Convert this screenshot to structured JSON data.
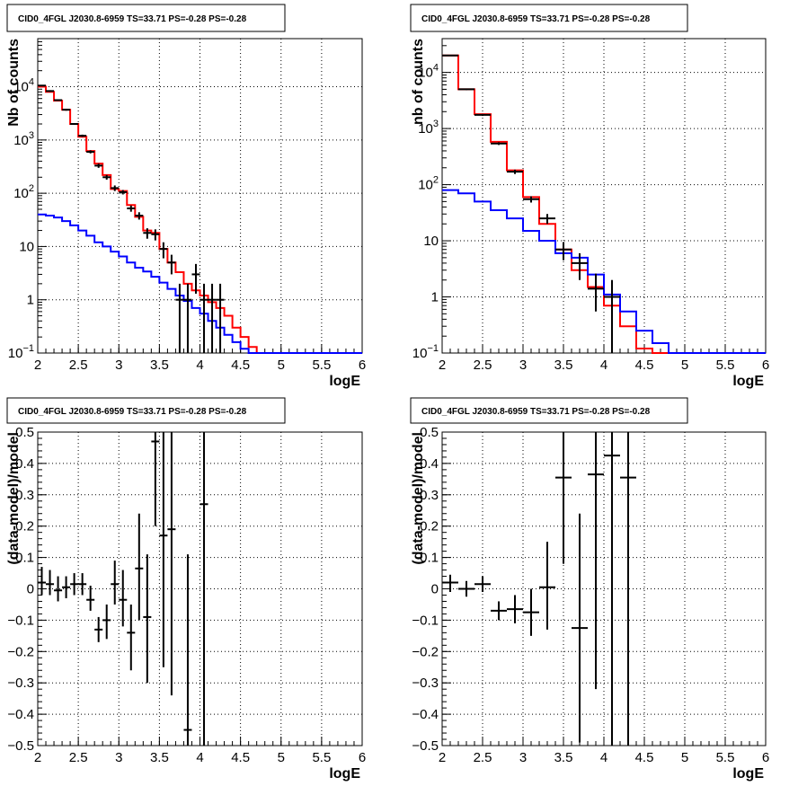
{
  "chart_data": [
    {
      "type": "line",
      "title": "CID0_4FGL J2030.8-6959 TS=33.71 PS=-0.28 PS=-0.28",
      "xlabel": "logE",
      "ylabel": "Nb of counts",
      "ylog": true,
      "xlim": [
        2,
        6
      ],
      "ylim": [
        0.1,
        80000
      ],
      "x_ticks": [
        "2",
        "2.5",
        "3",
        "3.5",
        "4",
        "4.5",
        "5",
        "5.5",
        "6"
      ],
      "y_ticks": [
        {
          "v": 0.1,
          "label": "10",
          "exp": "−1"
        },
        {
          "v": 1,
          "label": "1",
          "exp": ""
        },
        {
          "v": 10,
          "label": "10",
          "exp": ""
        },
        {
          "v": 100,
          "label": "10",
          "exp": "2"
        },
        {
          "v": 1000,
          "label": "10",
          "exp": "3"
        },
        {
          "v": 10000,
          "label": "10",
          "exp": "4"
        }
      ],
      "grid": true,
      "bin_width": 0.1,
      "series": [
        {
          "color": "#ff0000",
          "style": "step",
          "edges": [
            2,
            2.1,
            2.2,
            2.3,
            2.4,
            2.5,
            2.6,
            2.7,
            2.8,
            2.9,
            3,
            3.1,
            3.2,
            3.3,
            3.4,
            3.5,
            3.6,
            3.7,
            3.8,
            3.9,
            4,
            4.1,
            4.2,
            4.3,
            4.4,
            4.5,
            4.6,
            4.7,
            4.8,
            4.9,
            5,
            5.1,
            5.2,
            5.3,
            5.4,
            5.5,
            5.6,
            5.7,
            5.8,
            5.9,
            6
          ],
          "values": [
            10000,
            8000,
            5500,
            3700,
            2000,
            1150,
            620,
            360,
            220,
            120,
            110,
            60,
            36,
            20,
            18,
            9,
            5,
            3.3,
            2,
            1.5,
            1.2,
            0.9,
            0.7,
            0.5,
            0.3,
            0.2,
            0.13,
            0.1,
            0.1,
            0.1,
            0.1,
            0.1,
            0.1,
            0.1,
            0.1,
            0.1,
            0.1,
            0.1,
            0.1,
            0.1
          ]
        },
        {
          "color": "#0000ff",
          "style": "step",
          "edges": [
            2,
            2.1,
            2.2,
            2.3,
            2.4,
            2.5,
            2.6,
            2.7,
            2.8,
            2.9,
            3,
            3.1,
            3.2,
            3.3,
            3.4,
            3.5,
            3.6,
            3.7,
            3.8,
            3.9,
            4,
            4.1,
            4.2,
            4.3,
            4.4,
            4.5,
            4.6,
            4.7,
            4.8,
            4.9,
            5,
            5.1,
            5.2,
            5.3,
            5.4,
            5.5,
            5.6,
            5.7,
            5.8,
            5.9,
            6
          ],
          "values": [
            40,
            38,
            35,
            30,
            25,
            20,
            16,
            12,
            10,
            8,
            6.5,
            5,
            4,
            3.4,
            2.7,
            2.1,
            1.6,
            1.2,
            0.95,
            0.7,
            0.55,
            0.4,
            0.3,
            0.22,
            0.16,
            0.12,
            0.1,
            0.1,
            0.1,
            0.1,
            0.1,
            0.1,
            0.1,
            0.1,
            0.1,
            0.1,
            0.1,
            0.1,
            0.1,
            0.1
          ]
        }
      ],
      "points": [
        {
          "x": 2.05,
          "y": 10500,
          "ylo": 10200,
          "yhi": 10800
        },
        {
          "x": 2.15,
          "y": 8300,
          "ylo": 8000,
          "yhi": 8600
        },
        {
          "x": 2.25,
          "y": 5600,
          "ylo": 5400,
          "yhi": 5800
        },
        {
          "x": 2.35,
          "y": 3700,
          "ylo": 3550,
          "yhi": 3850
        },
        {
          "x": 2.45,
          "y": 2000,
          "ylo": 1920,
          "yhi": 2080
        },
        {
          "x": 2.55,
          "y": 1200,
          "ylo": 1140,
          "yhi": 1260
        },
        {
          "x": 2.65,
          "y": 600,
          "ylo": 560,
          "yhi": 640
        },
        {
          "x": 2.75,
          "y": 330,
          "ylo": 300,
          "yhi": 360
        },
        {
          "x": 2.85,
          "y": 200,
          "ylo": 180,
          "yhi": 220
        },
        {
          "x": 2.95,
          "y": 125,
          "ylo": 110,
          "yhi": 140
        },
        {
          "x": 3.05,
          "y": 105,
          "ylo": 95,
          "yhi": 115
        },
        {
          "x": 3.15,
          "y": 52,
          "ylo": 45,
          "yhi": 59
        },
        {
          "x": 3.25,
          "y": 38,
          "ylo": 32,
          "yhi": 44
        },
        {
          "x": 3.35,
          "y": 18,
          "ylo": 14,
          "yhi": 22
        },
        {
          "x": 3.45,
          "y": 17,
          "ylo": 13,
          "yhi": 21
        },
        {
          "x": 3.55,
          "y": 9,
          "ylo": 6,
          "yhi": 12
        },
        {
          "x": 3.65,
          "y": 5,
          "ylo": 3,
          "yhi": 7
        },
        {
          "x": 3.75,
          "y": 1,
          "ylo": 0.1,
          "yhi": 2
        },
        {
          "x": 3.85,
          "y": 1,
          "ylo": 0.1,
          "yhi": 2
        },
        {
          "x": 3.95,
          "y": 3,
          "ylo": 1.3,
          "yhi": 4.7
        },
        {
          "x": 4.05,
          "y": 1,
          "ylo": 0.1,
          "yhi": 2
        },
        {
          "x": 4.15,
          "y": 1,
          "ylo": 0.1,
          "yhi": 2
        },
        {
          "x": 4.25,
          "y": 1,
          "ylo": 0.1,
          "yhi": 2
        }
      ]
    },
    {
      "type": "line",
      "title": "CID0_4FGL J2030.8-6959 TS=33.71 PS=-0.28 PS=-0.28",
      "xlabel": "logE",
      "ylabel": "nb of counts",
      "ylog": true,
      "xlim": [
        2,
        6
      ],
      "ylim": [
        0.1,
        40000
      ],
      "x_ticks": [
        "2",
        "2.5",
        "3",
        "3.5",
        "4",
        "4.5",
        "5",
        "5.5",
        "6"
      ],
      "y_ticks": [
        {
          "v": 0.1,
          "label": "10",
          "exp": "−1"
        },
        {
          "v": 1,
          "label": "1",
          "exp": ""
        },
        {
          "v": 10,
          "label": "10",
          "exp": ""
        },
        {
          "v": 100,
          "label": "10",
          "exp": "2"
        },
        {
          "v": 1000,
          "label": "10",
          "exp": "3"
        },
        {
          "v": 10000,
          "label": "10",
          "exp": "4"
        }
      ],
      "grid": true,
      "bin_width": 0.2,
      "series": [
        {
          "color": "#ff0000",
          "style": "step",
          "edges": [
            2,
            2.2,
            2.4,
            2.6,
            2.8,
            3,
            3.2,
            3.4,
            3.6,
            3.8,
            4,
            4.2,
            4.4,
            4.6,
            4.8,
            5,
            5.2,
            5.4,
            5.6,
            5.8,
            6
          ],
          "values": [
            20000,
            5000,
            1800,
            580,
            180,
            60,
            20,
            7,
            3,
            1.5,
            0.7,
            0.3,
            0.12,
            0.1,
            0.1,
            0.1,
            0.1,
            0.1,
            0.1,
            0.1
          ]
        },
        {
          "color": "#0000ff",
          "style": "step",
          "edges": [
            2,
            2.2,
            2.4,
            2.6,
            2.8,
            3,
            3.2,
            3.4,
            3.6,
            3.8,
            4,
            4.2,
            4.4,
            4.6,
            4.8,
            5,
            5.2,
            5.4,
            5.6,
            5.8,
            6
          ],
          "values": [
            80,
            70,
            50,
            35,
            25,
            15,
            10,
            6,
            5,
            2.5,
            1.1,
            0.55,
            0.25,
            0.15,
            0.1,
            0.1,
            0.1,
            0.1,
            0.1,
            0.1
          ]
        }
      ],
      "points": [
        {
          "x": 2.1,
          "y": 20000,
          "ylo": 19700,
          "yhi": 20300
        },
        {
          "x": 2.3,
          "y": 5000,
          "ylo": 4850,
          "yhi": 5150
        },
        {
          "x": 2.5,
          "y": 1750,
          "ylo": 1680,
          "yhi": 1820
        },
        {
          "x": 2.7,
          "y": 540,
          "ylo": 510,
          "yhi": 570
        },
        {
          "x": 2.9,
          "y": 170,
          "ylo": 155,
          "yhi": 185
        },
        {
          "x": 3.1,
          "y": 55,
          "ylo": 48,
          "yhi": 62
        },
        {
          "x": 3.3,
          "y": 25,
          "ylo": 20,
          "yhi": 30
        },
        {
          "x": 3.5,
          "y": 7,
          "ylo": 4.5,
          "yhi": 9.5
        },
        {
          "x": 3.7,
          "y": 4,
          "ylo": 2,
          "yhi": 6
        },
        {
          "x": 3.9,
          "y": 1.4,
          "ylo": 0.55,
          "yhi": 2.6
        },
        {
          "x": 4.1,
          "y": 1,
          "ylo": 0.1,
          "yhi": 2
        }
      ]
    },
    {
      "type": "scatter",
      "title": "CID0_4FGL J2030.8-6959 TS=33.71 PS=-0.28 PS=-0.28",
      "xlabel": "logE",
      "ylabel": "(data-model)/model",
      "ylog": false,
      "xlim": [
        2,
        6
      ],
      "ylim": [
        -0.5,
        0.5
      ],
      "x_ticks": [
        "2",
        "2.5",
        "3",
        "3.5",
        "4",
        "4.5",
        "5",
        "5.5",
        "6"
      ],
      "y_ticks": [
        "−0.5",
        "−0.4",
        "−0.3",
        "−0.2",
        "−0.1",
        "0",
        "0.1",
        "0.2",
        "0.3",
        "0.4",
        "0.5"
      ],
      "grid": true,
      "bin_width": 0.1,
      "points": [
        {
          "x": 2.05,
          "y": 0.02,
          "ylo": -0.02,
          "yhi": 0.07
        },
        {
          "x": 2.15,
          "y": 0.015,
          "ylo": -0.02,
          "yhi": 0.06
        },
        {
          "x": 2.25,
          "y": -0.005,
          "ylo": -0.04,
          "yhi": 0.04
        },
        {
          "x": 2.35,
          "y": 0.005,
          "ylo": -0.03,
          "yhi": 0.04
        },
        {
          "x": 2.45,
          "y": 0.015,
          "ylo": -0.02,
          "yhi": 0.05
        },
        {
          "x": 2.55,
          "y": 0.015,
          "ylo": -0.02,
          "yhi": 0.05
        },
        {
          "x": 2.65,
          "y": -0.035,
          "ylo": -0.07,
          "yhi": 0.01
        },
        {
          "x": 2.75,
          "y": -0.13,
          "ylo": -0.17,
          "yhi": -0.09
        },
        {
          "x": 2.85,
          "y": -0.1,
          "ylo": -0.16,
          "yhi": -0.05
        },
        {
          "x": 2.95,
          "y": 0.015,
          "ylo": -0.05,
          "yhi": 0.09
        },
        {
          "x": 3.05,
          "y": -0.035,
          "ylo": -0.12,
          "yhi": 0.06
        },
        {
          "x": 3.15,
          "y": -0.14,
          "ylo": -0.26,
          "yhi": -0.05
        },
        {
          "x": 3.25,
          "y": 0.065,
          "ylo": -0.1,
          "yhi": 0.24
        },
        {
          "x": 3.35,
          "y": -0.09,
          "ylo": -0.3,
          "yhi": 0.11
        },
        {
          "x": 3.45,
          "y": 0.47,
          "ylo": 0.2,
          "yhi": 0.5
        },
        {
          "x": 3.55,
          "y": 0.17,
          "ylo": -0.25,
          "yhi": 0.5
        },
        {
          "x": 3.65,
          "y": 0.19,
          "ylo": -0.34,
          "yhi": 0.5
        },
        {
          "x": 3.85,
          "y": -0.45,
          "ylo": -0.5,
          "yhi": 0.11
        },
        {
          "x": 4.05,
          "y": 0.27,
          "ylo": -0.5,
          "yhi": 0.5
        }
      ]
    },
    {
      "type": "scatter",
      "title": "CID0_4FGL J2030.8-6959 TS=33.71 PS=-0.28 PS=-0.28",
      "xlabel": "logE",
      "ylabel": "(data-model)/model",
      "ylog": false,
      "xlim": [
        2,
        6
      ],
      "ylim": [
        -0.5,
        0.5
      ],
      "x_ticks": [
        "2",
        "2.5",
        "3",
        "3.5",
        "4",
        "4.5",
        "5",
        "5.5",
        "6"
      ],
      "y_ticks": [
        "−0.5",
        "−0.4",
        "−0.3",
        "−0.2",
        "−0.1",
        "0",
        "0.1",
        "0.2",
        "0.3",
        "0.4",
        "0.5"
      ],
      "grid": true,
      "bin_width": 0.2,
      "points": [
        {
          "x": 2.1,
          "y": 0.02,
          "ylo": -0.01,
          "yhi": 0.045
        },
        {
          "x": 2.3,
          "y": 0.0,
          "ylo": -0.025,
          "yhi": 0.025
        },
        {
          "x": 2.5,
          "y": 0.015,
          "ylo": -0.01,
          "yhi": 0.04
        },
        {
          "x": 2.7,
          "y": -0.07,
          "ylo": -0.1,
          "yhi": -0.04
        },
        {
          "x": 2.9,
          "y": -0.065,
          "ylo": -0.11,
          "yhi": -0.02
        },
        {
          "x": 3.1,
          "y": -0.075,
          "ylo": -0.15,
          "yhi": 0.0
        },
        {
          "x": 3.3,
          "y": 0.005,
          "ylo": -0.13,
          "yhi": 0.15
        },
        {
          "x": 3.5,
          "y": 0.355,
          "ylo": 0.08,
          "yhi": 0.5
        },
        {
          "x": 3.7,
          "y": -0.125,
          "ylo": -0.49,
          "yhi": 0.24
        },
        {
          "x": 3.9,
          "y": 0.365,
          "ylo": -0.32,
          "yhi": 0.5
        },
        {
          "x": 4.1,
          "y": 0.425,
          "ylo": -0.5,
          "yhi": 0.5
        },
        {
          "x": 4.3,
          "y": 0.355,
          "ylo": -0.5,
          "yhi": 0.5
        }
      ]
    }
  ]
}
